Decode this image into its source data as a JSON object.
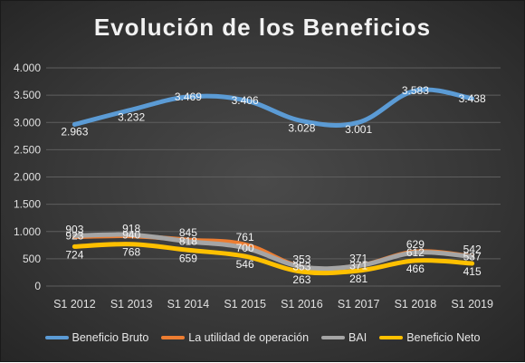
{
  "chart_data": {
    "type": "line",
    "title": "Evolución de los Beneficios",
    "xlabel": "",
    "ylabel": "",
    "categories": [
      "S1 2012",
      "S1 2013",
      "S1 2014",
      "S1 2015",
      "S1 2016",
      "S1 2017",
      "S1 2018",
      "S1 2019"
    ],
    "ylim": [
      0,
      4000
    ],
    "yticks": [
      0,
      500,
      1000,
      1500,
      2000,
      2500,
      3000,
      3500,
      4000
    ],
    "ytick_labels": [
      "0",
      "500",
      "1.000",
      "1.500",
      "2.000",
      "2.500",
      "3.000",
      "3.500",
      "4.000"
    ],
    "grid": true,
    "legend_position": "bottom",
    "series": [
      {
        "name": "Beneficio Bruto",
        "color": "#5b9bd5",
        "values": [
          2963,
          3232,
          3469,
          3406,
          3028,
          3001,
          3583,
          3438
        ],
        "labels": [
          "2.963",
          "3.232",
          "3.469",
          "3.406",
          "3.028",
          "3.001",
          "3.583",
          "3.438"
        ]
      },
      {
        "name": "La utilidad de operación",
        "color": "#ed7d31",
        "values": [
          903,
          918,
          845,
          761,
          353,
          371,
          629,
          542
        ],
        "labels": [
          "903",
          "918",
          "845",
          "761",
          "353",
          "371",
          "629",
          "542"
        ]
      },
      {
        "name": "BAI",
        "color": "#a5a5a5",
        "values": [
          923,
          940,
          818,
          700,
          353,
          371,
          612,
          537
        ],
        "labels": [
          "923",
          "940",
          "818",
          "700",
          "353",
          "371",
          "612",
          "537"
        ]
      },
      {
        "name": "Beneficio Neto",
        "color": "#ffc000",
        "values": [
          724,
          768,
          659,
          546,
          263,
          281,
          466,
          415
        ],
        "labels": [
          "724",
          "768",
          "659",
          "546",
          "263",
          "281",
          "466",
          "415"
        ]
      }
    ]
  }
}
